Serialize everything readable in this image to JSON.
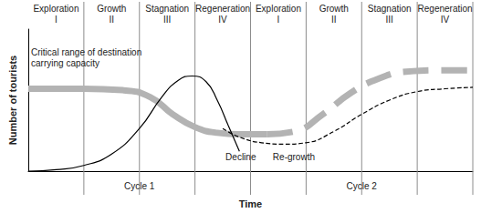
{
  "chart_data": {
    "type": "line",
    "x_label": "Time",
    "y_label": "Number of tourists",
    "xlim": [
      0,
      8
    ],
    "ylim": [
      0,
      100
    ],
    "tick_labels": false,
    "grid": false,
    "stages": [
      {
        "name": "Exploration",
        "numeral": "I",
        "x": 0.5
      },
      {
        "name": "Growth",
        "numeral": "II",
        "x": 1.5
      },
      {
        "name": "Stagnation",
        "numeral": "III",
        "x": 2.5
      },
      {
        "name": "Regeneration",
        "numeral": "IV",
        "x": 3.5
      },
      {
        "name": "Exploration",
        "numeral": "I",
        "x": 4.5
      },
      {
        "name": "Growth",
        "numeral": "II",
        "x": 5.5
      },
      {
        "name": "Stagnation",
        "numeral": "III",
        "x": 6.5
      },
      {
        "name": "Regeneration",
        "numeral": "IV",
        "x": 7.5
      }
    ],
    "dividers": [
      1,
      2,
      3,
      4,
      5,
      6,
      7,
      8
    ],
    "cycles": [
      {
        "label": "Cycle 1",
        "x": 2
      },
      {
        "label": "Cycle 2",
        "x": 6
      }
    ],
    "series": [
      {
        "color": "#b3b3b3",
        "line_style": "solid",
        "x": [
          0,
          1,
          1.7,
          2.2,
          2.6,
          3.0,
          3.4,
          3.8,
          4.3
        ],
        "values": [
          58,
          58,
          57,
          52,
          40,
          31,
          27,
          26,
          26
        ]
      },
      {
        "color": "#b3b3b3",
        "line_style": "dashed",
        "x": [
          4.3,
          4.8,
          5.3,
          5.8,
          6.3,
          6.8,
          7.5,
          8
        ],
        "values": [
          26,
          28,
          40,
          55,
          65,
          70,
          71,
          71
        ]
      },
      {
        "color": "#000000",
        "line_style": "solid",
        "x": [
          0,
          0.5,
          1,
          1.5,
          2,
          2.4,
          2.7,
          2.95,
          3.2,
          3.4,
          3.6,
          3.8
        ],
        "values": [
          0,
          1,
          4,
          12,
          30,
          52,
          64,
          67,
          63,
          50,
          32,
          14
        ]
      },
      {
        "color": "#000000",
        "line_style": "dashed",
        "x": [
          3.5,
          3.8,
          4.2,
          4.6,
          5,
          5.5,
          6,
          6.5,
          7,
          7.5,
          8
        ],
        "values": [
          30,
          24,
          20,
          19,
          20,
          28,
          40,
          50,
          56,
          58,
          59
        ]
      }
    ],
    "annotations": [
      {
        "text": "Critical range of destination\ncarrying capacity",
        "x": 0.05,
        "y": 72
      },
      {
        "text": "Decline",
        "x": 3.55,
        "y": 6
      },
      {
        "text": "Re-growth",
        "x": 4.4,
        "y": 6
      }
    ]
  }
}
